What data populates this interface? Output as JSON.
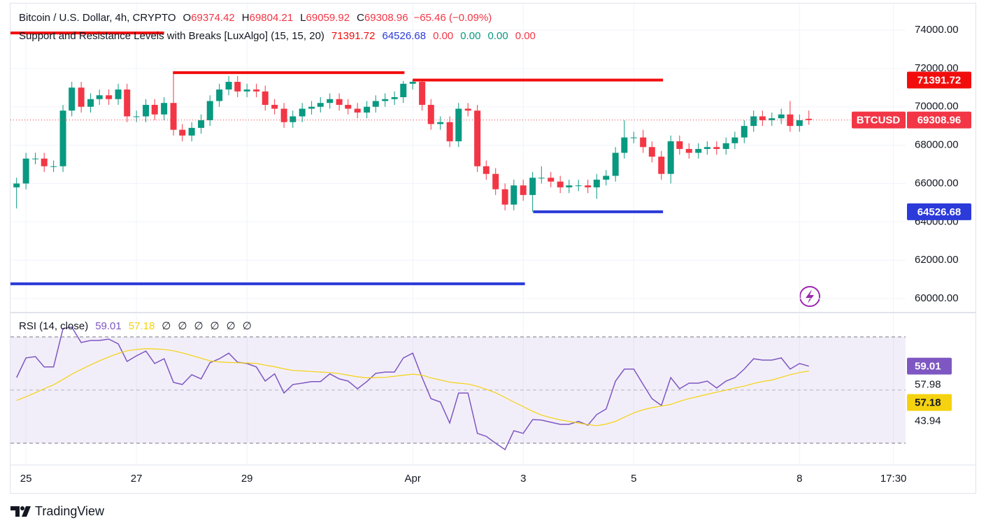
{
  "header": {
    "symbol": "Bitcoin / U.S. Dollar, 4h, CRYPTO",
    "ohlc_labels": [
      "O",
      "H",
      "L",
      "C"
    ],
    "change": "−65.46 (−0.09%)",
    "indicator": "Support and Resistance Levels with Breaks [LuxAlgo] (15, 15, 20)",
    "indicator_values": [
      "0.00",
      "0.00",
      "0.00",
      "0.00"
    ],
    "indicator_value_colors": [
      "#f23645",
      "#089981",
      "#089981",
      "#f23645"
    ],
    "symbol_badge": "BTCUSD",
    "rsi_title": "RSI (14, close)",
    "rsi_empty": [
      "∅",
      "∅",
      "∅",
      "∅",
      "∅",
      "∅"
    ],
    "brand": "TradingView"
  },
  "chart_data": [
    {
      "type": "candlestick",
      "up_color": "#089981",
      "down_color": "#f23645",
      "grid": true,
      "xlim": [
        -0.28,
        15.92
      ],
      "ylim": [
        59527,
        75385
      ],
      "xticks": [
        {
          "value": 0,
          "label": "25"
        },
        {
          "value": 2,
          "label": "27"
        },
        {
          "value": 4,
          "label": "29"
        },
        {
          "value": 7,
          "label": "Apr"
        },
        {
          "value": 9,
          "label": "3"
        },
        {
          "value": 11,
          "label": "5"
        },
        {
          "value": 14,
          "label": "8"
        },
        {
          "value": 15.7,
          "label": "17:30"
        }
      ],
      "yticks": [
        {
          "value": 74000,
          "label": "74000.00"
        },
        {
          "value": 72000,
          "label": "72000.00"
        },
        {
          "value": 70000,
          "label": "70000.00"
        },
        {
          "value": 68000,
          "label": "68000.00"
        },
        {
          "value": 66000,
          "label": "66000.00"
        },
        {
          "value": 64000,
          "label": "64000.00"
        },
        {
          "value": 62000,
          "label": "62000.00"
        },
        {
          "value": 60000,
          "label": "60000.00"
        }
      ],
      "x": [
        -0.17,
        0,
        0.17,
        0.33,
        0.5,
        0.67,
        0.83,
        1,
        1.17,
        1.33,
        1.5,
        1.67,
        1.83,
        2,
        2.17,
        2.33,
        2.5,
        2.67,
        2.83,
        3,
        3.17,
        3.33,
        3.5,
        3.67,
        3.83,
        4,
        4.17,
        4.33,
        4.5,
        4.67,
        4.83,
        5,
        5.17,
        5.33,
        5.5,
        5.67,
        5.83,
        6,
        6.17,
        6.33,
        6.5,
        6.67,
        6.83,
        7,
        7.17,
        7.33,
        7.5,
        7.67,
        7.83,
        8,
        8.17,
        8.33,
        8.5,
        8.67,
        8.83,
        9,
        9.17,
        9.33,
        9.5,
        9.67,
        9.83,
        10,
        10.17,
        10.33,
        10.5,
        10.67,
        10.83,
        11,
        11.17,
        11.33,
        11.5,
        11.67,
        11.83,
        12,
        12.17,
        12.33,
        12.5,
        12.67,
        12.83,
        13,
        13.17,
        13.33,
        13.5,
        13.67,
        13.83,
        14,
        14.17
      ],
      "open": [
        65800,
        66000,
        67300,
        67300,
        66900,
        66900,
        69800,
        71000,
        70000,
        70400,
        70600,
        70400,
        70900,
        69500,
        69500,
        70100,
        69600,
        70200,
        68800,
        68500,
        68900,
        69300,
        70300,
        70900,
        71300,
        70800,
        70900,
        70800,
        70100,
        69900,
        69200,
        69500,
        69900,
        70000,
        70200,
        70400,
        70100,
        69900,
        69700,
        70000,
        70300,
        70400,
        70500,
        71200,
        71300,
        70100,
        69100,
        69200,
        68200,
        69900,
        69800,
        66900,
        66500,
        65700,
        64900,
        65900,
        65400,
        66300,
        66300,
        66100,
        65800,
        65900,
        65900,
        65800,
        66200,
        66400,
        67600,
        68400,
        68400,
        67900,
        67400,
        66500,
        68200,
        67800,
        67600,
        67800,
        67900,
        67800,
        68100,
        68400,
        69000,
        69500,
        69300,
        69400,
        69600,
        69000,
        69374.42
      ],
      "high": [
        66300,
        67600,
        67600,
        67600,
        67200,
        70100,
        71300,
        71300,
        70700,
        70900,
        70900,
        71200,
        71200,
        69800,
        70400,
        70400,
        70500,
        71780,
        69100,
        69200,
        69600,
        70600,
        71200,
        71600,
        71600,
        71200,
        71200,
        71100,
        70400,
        70200,
        69800,
        70200,
        70300,
        70500,
        70700,
        70700,
        70400,
        70200,
        70300,
        70600,
        70700,
        70800,
        71350,
        71391.72,
        71350,
        70400,
        69500,
        69500,
        70200,
        70200,
        70100,
        67200,
        66800,
        66000,
        66200,
        66200,
        66600,
        66900,
        66600,
        66400,
        66200,
        66200,
        66200,
        66500,
        66700,
        67900,
        69300,
        68700,
        68800,
        68200,
        67700,
        68500,
        68500,
        68100,
        68100,
        68200,
        68200,
        68400,
        68700,
        69300,
        69800,
        69800,
        69700,
        69900,
        70300,
        69600,
        69804.21
      ],
      "low": [
        64700,
        65700,
        67000,
        66600,
        66600,
        66600,
        69500,
        69700,
        69700,
        70100,
        70100,
        70100,
        69200,
        69200,
        69200,
        69300,
        69300,
        68500,
        68200,
        68200,
        68600,
        69000,
        70000,
        70600,
        70500,
        70500,
        70500,
        69800,
        69600,
        68900,
        68900,
        69200,
        69600,
        69700,
        69900,
        69800,
        69600,
        69400,
        69400,
        69700,
        70000,
        70100,
        70200,
        70900,
        69800,
        68800,
        68800,
        67900,
        67900,
        69500,
        66600,
        66200,
        65400,
        64600,
        64600,
        65100,
        64526.68,
        66000,
        65800,
        65500,
        65500,
        65600,
        65500,
        65200,
        65900,
        66100,
        67300,
        68100,
        67600,
        67100,
        66200,
        66000,
        67500,
        67300,
        67300,
        67500,
        67500,
        67500,
        67800,
        68100,
        68700,
        69000,
        69000,
        69100,
        68700,
        68700,
        69059.92
      ],
      "close": [
        66000,
        67300,
        67300,
        66900,
        66900,
        69800,
        71000,
        70000,
        70400,
        70600,
        70400,
        70900,
        69500,
        69500,
        70100,
        69600,
        70200,
        68800,
        68500,
        68900,
        69300,
        70300,
        70900,
        71300,
        70800,
        70900,
        70800,
        70100,
        69900,
        69200,
        69500,
        69900,
        70000,
        70200,
        70400,
        70100,
        69900,
        69700,
        70000,
        70300,
        70400,
        70500,
        71200,
        71300,
        70100,
        69100,
        69200,
        68200,
        69900,
        69800,
        66900,
        66500,
        65700,
        64900,
        65900,
        65400,
        66300,
        66300,
        66100,
        65800,
        65900,
        65900,
        65800,
        66200,
        66400,
        67600,
        68400,
        68400,
        67900,
        67400,
        66500,
        68200,
        67800,
        67600,
        67800,
        67900,
        67800,
        68100,
        68400,
        69000,
        69500,
        69300,
        69400,
        69600,
        69000,
        69300,
        69308.96
      ],
      "levels": [
        {
          "value": 73850,
          "x": [
            -0.28,
            2.5
          ],
          "color": "#f20d0d",
          "badge": false
        },
        {
          "value": 71780,
          "x": [
            2.66,
            6.85
          ],
          "color": "#f20d0d",
          "badge": false
        },
        {
          "value": 71391.72,
          "x": [
            7.0,
            11.53
          ],
          "color": "#f20d0d",
          "badge": true
        },
        {
          "value": 64526.68,
          "x": [
            9.18,
            11.53
          ],
          "color": "#2b3ad9",
          "badge": true
        },
        {
          "value": 60770,
          "x": [
            -0.28,
            9.03
          ],
          "color": "#2b3ad9",
          "badge": false
        }
      ]
    },
    {
      "type": "line",
      "ylim": [
        22.6,
        78.4
      ],
      "yticks": [
        57.98,
        43.94
      ],
      "bands": [
        70,
        50,
        30
      ],
      "band_color": "#7e57c2",
      "series": [
        {
          "color": "#7e57c2",
          "values": [
            54.7,
            62.1,
            62.6,
            58.7,
            58.7,
            73.2,
            73.7,
            67.9,
            68.7,
            68.7,
            69.2,
            67.4,
            60.8,
            62.9,
            64.7,
            60,
            61.8,
            52.9,
            52.1,
            55.8,
            54.2,
            60.3,
            61.8,
            63.9,
            60.5,
            60,
            58.7,
            53.4,
            56.1,
            48.9,
            52.1,
            52.6,
            53.2,
            53.2,
            56.1,
            54.2,
            53.4,
            50.5,
            53.2,
            56.3,
            56.8,
            56.8,
            62.1,
            63.9,
            54.7,
            46.8,
            45.5,
            37.6,
            48.9,
            48.9,
            33.7,
            32.6,
            30,
            27.6,
            34.7,
            33.7,
            38.9,
            38.7,
            37.9,
            37.1,
            37.1,
            38.2,
            36.8,
            40.8,
            42.9,
            53.4,
            57.9,
            57.9,
            52.1,
            46.8,
            44.2,
            54.7,
            50.5,
            52.6,
            52.6,
            53.4,
            50.8,
            53.4,
            54.7,
            57.9,
            61.8,
            61.3,
            61.3,
            62.1,
            57.9,
            60,
            59.01
          ]
        },
        {
          "color": "#f5d20f",
          "values": [
            46.1,
            47.5,
            49,
            50.5,
            52,
            54,
            56,
            57.8,
            59.5,
            61,
            62.5,
            63.8,
            64.8,
            65.3,
            65.6,
            65.5,
            65.3,
            64.8,
            64,
            63,
            62,
            61,
            60.6,
            60.4,
            60.3,
            60.2,
            60,
            59.4,
            58.8,
            58,
            57.4,
            57.2,
            57,
            56.8,
            56.6,
            56.2,
            55.6,
            55,
            54.6,
            54.7,
            54.8,
            55.2,
            55.6,
            56,
            55.6,
            54.6,
            53.8,
            53,
            52.6,
            52.3,
            51.4,
            50.3,
            49,
            47.2,
            45.5,
            43.8,
            42,
            40.6,
            39.6,
            38.8,
            38.2,
            37.6,
            37,
            36.6,
            37.2,
            38.2,
            39.8,
            41.4,
            42.6,
            43.4,
            44,
            44.6,
            45.8,
            46.8,
            47.6,
            48.4,
            49.2,
            50,
            50.8,
            51.5,
            52.5,
            53.2,
            53.8,
            54.8,
            55.8,
            56.6,
            57.18
          ]
        }
      ]
    }
  ]
}
